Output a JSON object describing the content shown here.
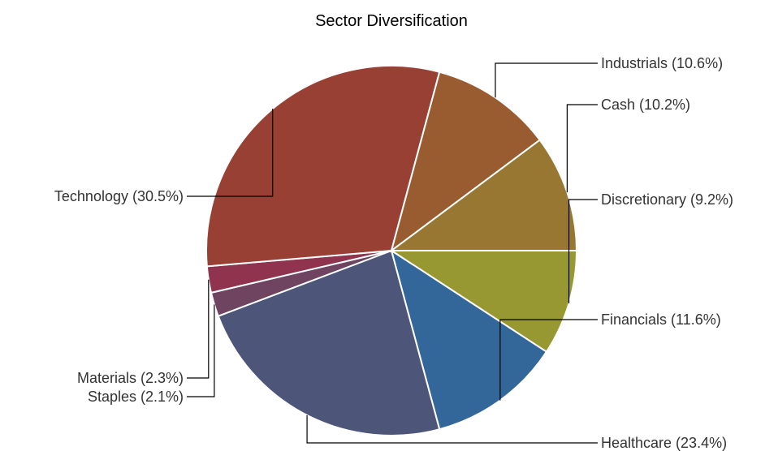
{
  "chart_data": {
    "type": "pie",
    "title": "Sector Diversification",
    "slices": [
      {
        "name": "Discretionary",
        "label": "Discretionary (9.2%)",
        "value": 9.2,
        "color": "#989832"
      },
      {
        "name": "Financials",
        "label": "Financials (11.6%)",
        "value": 11.6,
        "color": "#336699"
      },
      {
        "name": "Healthcare",
        "label": "Healthcare (23.4%)",
        "value": 23.4,
        "color": "#4d5578"
      },
      {
        "name": "Staples",
        "label": "Staples (2.1%)",
        "value": 2.1,
        "color": "#6e4461"
      },
      {
        "name": "Materials",
        "label": "Materials (2.3%)",
        "value": 2.3,
        "color": "#8f334e"
      },
      {
        "name": "Technology",
        "label": "Technology (30.5%)",
        "value": 30.5,
        "color": "#974033"
      },
      {
        "name": "Industrials",
        "label": "Industrials (10.6%)",
        "value": 10.6,
        "color": "#985c30"
      },
      {
        "name": "Cash",
        "label": "Cash (10.2%)",
        "value": 10.2,
        "color": "#987733"
      }
    ],
    "legend": "none"
  }
}
